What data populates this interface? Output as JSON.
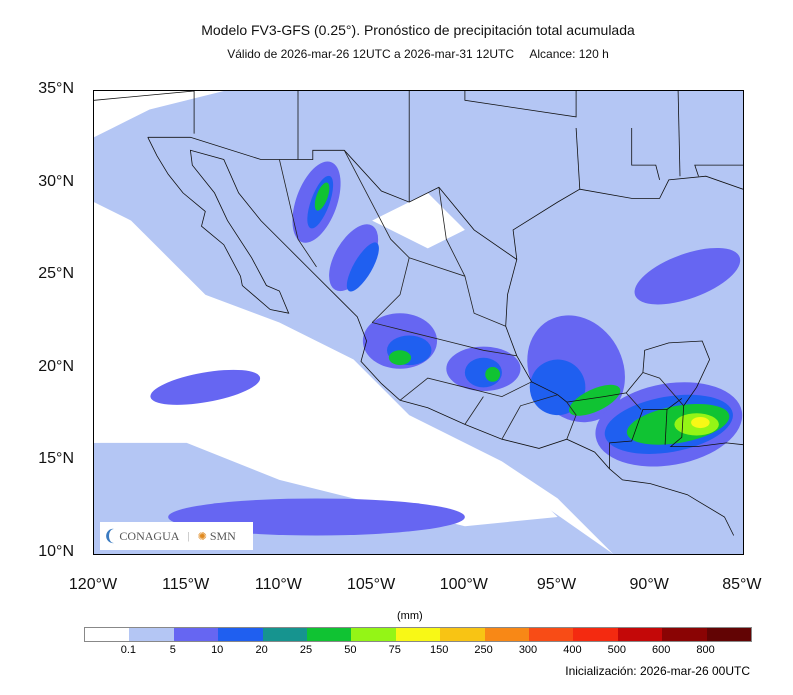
{
  "title": {
    "line1": "Modelo FV3-GFS (0.25°). Pronóstico de precipitación total acumulada",
    "valid": "Válido de 2026-mar-26 12UTC a 2026-mar-31 12UTC",
    "range": "Alcance: 120 h"
  },
  "map": {
    "lon_range": [
      -120,
      -85
    ],
    "lat_range": [
      10,
      35
    ],
    "lat_labels": [
      "35°N",
      "30°N",
      "25°N",
      "20°N",
      "15°N",
      "10°N"
    ],
    "lon_labels": [
      "120°W",
      "115°W",
      "110°W",
      "105°W",
      "100°W",
      "95°W",
      "90°W",
      "85°W"
    ],
    "logos": {
      "conagua": "CONAGUA",
      "smn": "SMN"
    }
  },
  "colorbar": {
    "unit": "(mm)",
    "labels": [
      "0.1",
      "5",
      "10",
      "20",
      "25",
      "50",
      "75",
      "150",
      "250",
      "300",
      "400",
      "500",
      "600",
      "800"
    ],
    "colors": [
      "#ffffff",
      "#b4c6f4",
      "#6666f2",
      "#1f5ff0",
      "#16948f",
      "#10c333",
      "#94f516",
      "#f8f816",
      "#f8c414",
      "#f88816",
      "#f84c16",
      "#f42a10",
      "#c40808",
      "#8a0404",
      "#620404"
    ]
  },
  "footer": {
    "init": "Inicialización: 2026-mar-26 00UTC"
  }
}
